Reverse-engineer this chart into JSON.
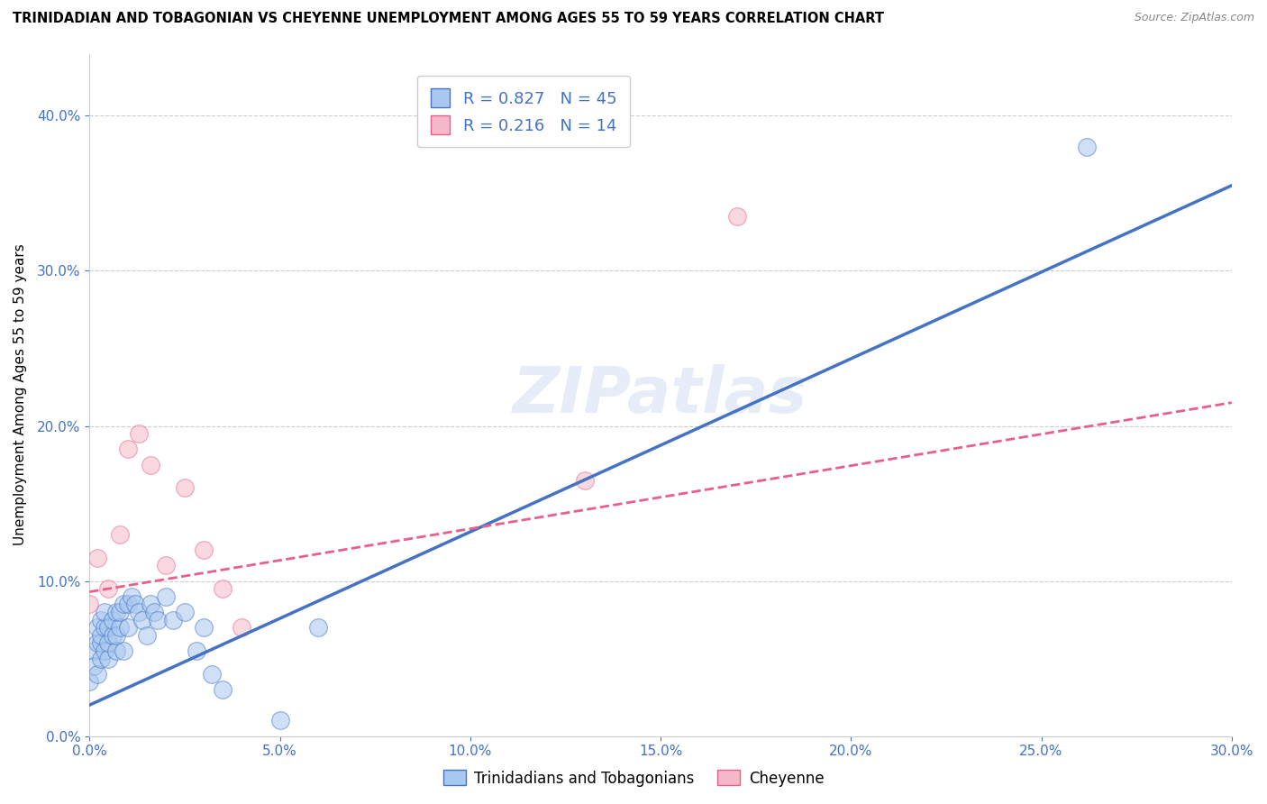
{
  "title": "TRINIDADIAN AND TOBAGONIAN VS CHEYENNE UNEMPLOYMENT AMONG AGES 55 TO 59 YEARS CORRELATION CHART",
  "source": "Source: ZipAtlas.com",
  "ylabel": "Unemployment Among Ages 55 to 59 years",
  "xlim": [
    0.0,
    0.3
  ],
  "ylim": [
    0.0,
    0.44
  ],
  "xticks": [
    0.0,
    0.05,
    0.1,
    0.15,
    0.2,
    0.25,
    0.3
  ],
  "yticks": [
    0.0,
    0.1,
    0.2,
    0.3,
    0.4
  ],
  "blue_R": 0.827,
  "blue_N": 45,
  "pink_R": 0.216,
  "pink_N": 14,
  "blue_color": "#A8C8F0",
  "pink_color": "#F5B8C8",
  "blue_line_color": "#4472C4",
  "pink_line_color": "#E8608A",
  "watermark": "ZIPatlas",
  "legend_label_blue": "Trinidadians and Tobagonians",
  "legend_label_pink": "Cheyenne",
  "blue_scatter_x": [
    0.0,
    0.001,
    0.001,
    0.002,
    0.002,
    0.002,
    0.003,
    0.003,
    0.003,
    0.003,
    0.004,
    0.004,
    0.004,
    0.005,
    0.005,
    0.005,
    0.006,
    0.006,
    0.007,
    0.007,
    0.007,
    0.008,
    0.008,
    0.009,
    0.009,
    0.01,
    0.01,
    0.011,
    0.012,
    0.013,
    0.014,
    0.015,
    0.016,
    0.017,
    0.018,
    0.02,
    0.022,
    0.025,
    0.028,
    0.03,
    0.032,
    0.035,
    0.05,
    0.06,
    0.262
  ],
  "blue_scatter_y": [
    0.035,
    0.055,
    0.045,
    0.04,
    0.06,
    0.07,
    0.05,
    0.06,
    0.065,
    0.075,
    0.055,
    0.07,
    0.08,
    0.05,
    0.06,
    0.07,
    0.065,
    0.075,
    0.055,
    0.065,
    0.08,
    0.07,
    0.08,
    0.055,
    0.085,
    0.07,
    0.085,
    0.09,
    0.085,
    0.08,
    0.075,
    0.065,
    0.085,
    0.08,
    0.075,
    0.09,
    0.075,
    0.08,
    0.055,
    0.07,
    0.04,
    0.03,
    0.01,
    0.07,
    0.38
  ],
  "pink_scatter_x": [
    0.0,
    0.002,
    0.005,
    0.008,
    0.01,
    0.013,
    0.016,
    0.02,
    0.025,
    0.03,
    0.035,
    0.04,
    0.13,
    0.17
  ],
  "pink_scatter_y": [
    0.085,
    0.115,
    0.095,
    0.13,
    0.185,
    0.195,
    0.175,
    0.11,
    0.16,
    0.12,
    0.095,
    0.07,
    0.165,
    0.335
  ],
  "blue_line_x0": 0.0,
  "blue_line_y0": 0.02,
  "blue_line_x1": 0.3,
  "blue_line_y1": 0.355,
  "pink_line_x0": 0.0,
  "pink_line_y0": 0.093,
  "pink_line_x1": 0.3,
  "pink_line_y1": 0.215
}
